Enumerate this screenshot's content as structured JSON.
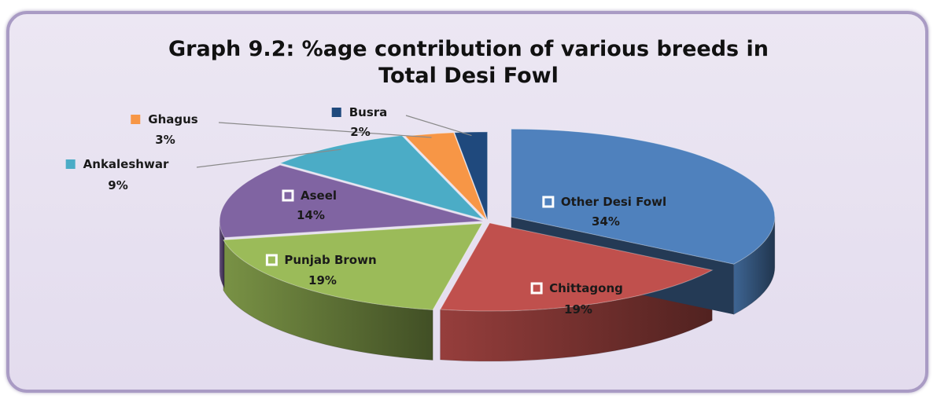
{
  "chart_data": {
    "type": "pie",
    "title_line1": "Graph 9.2: %age contribution of various breeds in",
    "title_line2": "Total Desi Fowl",
    "slices": [
      {
        "label": "Other Desi Fowl",
        "value": 34,
        "percent_text": "34%",
        "color": "#4f81bd"
      },
      {
        "label": "Chittagong",
        "value": 19,
        "percent_text": "19%",
        "color": "#c0504d"
      },
      {
        "label": "Punjab Brown",
        "value": 19,
        "percent_text": "19%",
        "color": "#9bbb59"
      },
      {
        "label": "Aseel",
        "value": 14,
        "percent_text": "14%",
        "color": "#8064a2"
      },
      {
        "label": "Ankaleshwar",
        "value": 9,
        "percent_text": "9%",
        "color": "#4bacc6"
      },
      {
        "label": "Ghagus",
        "value": 3,
        "percent_text": "3%",
        "color": "#f79646"
      },
      {
        "label": "Busra",
        "value": 2,
        "percent_text": "2%",
        "color": "#1f497d"
      }
    ],
    "legend": "none (data labels on slices)"
  }
}
